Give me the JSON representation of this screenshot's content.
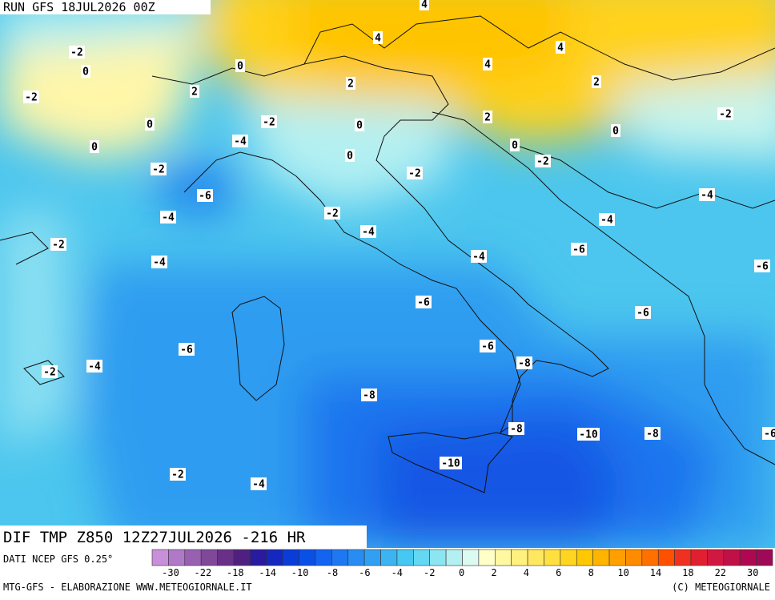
{
  "header": {
    "run": "RUN GFS 18JUL2026 00Z"
  },
  "map": {
    "field": "DIF TMP Z850 12Z27JUL2026 -216 HR",
    "contour_labels": [
      4,
      -2,
      0,
      4,
      4,
      0,
      4,
      2,
      2,
      -2,
      2,
      0,
      0,
      -2,
      2,
      -2,
      0,
      0,
      -4,
      0,
      -2,
      0,
      -2,
      -2,
      -6,
      -4,
      -2,
      -4,
      -4,
      -4,
      -2,
      -6,
      -4,
      -4,
      -6,
      -6,
      -6,
      -6,
      -6,
      -8,
      -2,
      -4,
      -8,
      -8,
      -10,
      -8,
      -10,
      -2,
      -4,
      -6
    ]
  },
  "legend": {
    "source": "DATI NCEP GFS 0.25°",
    "colors": [
      "#c890d8",
      "#b078c8",
      "#9860b0",
      "#804898",
      "#683088",
      "#502080",
      "#2a1aa0",
      "#1428c0",
      "#0a3cd8",
      "#0a50e6",
      "#1464f0",
      "#1e78f2",
      "#288cf2",
      "#32a0f2",
      "#3cb4f2",
      "#46c8f2",
      "#64d7f2",
      "#8ce6f2",
      "#b4f0f2",
      "#dcfaf2",
      "#ffffc8",
      "#fff8a0",
      "#fff080",
      "#ffe860",
      "#ffe040",
      "#ffd520",
      "#ffc800",
      "#ffb400",
      "#ffa000",
      "#ff8c00",
      "#ff7000",
      "#ff5000",
      "#f03020",
      "#e02030",
      "#d01840",
      "#c01048",
      "#b00850",
      "#a00858"
    ],
    "ticks": [
      -30,
      -22,
      -18,
      -14,
      -10,
      -8,
      -6,
      -4,
      -2,
      0,
      2,
      4,
      6,
      8,
      10,
      14,
      18,
      22,
      30
    ]
  },
  "footer": {
    "left": "MTG-GFS - ELABORAZIONE WWW.METEOGIORNALE.IT",
    "right": "(C) METEOGIORNALE"
  }
}
